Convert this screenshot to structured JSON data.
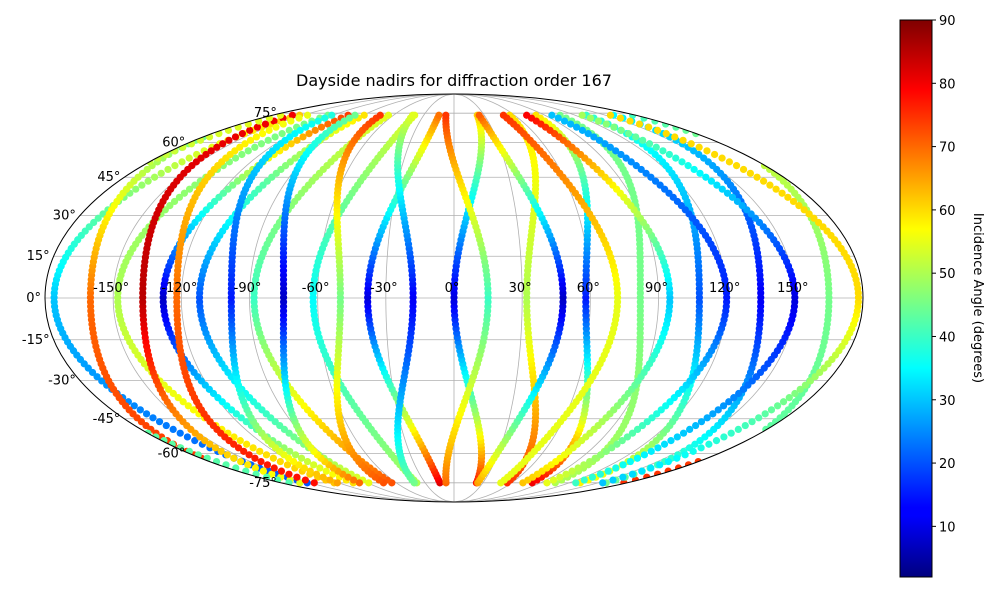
{
  "chart_data": {
    "type": "scatter",
    "projection": "mollweide",
    "title": "Dayside nadirs for diffraction order 167",
    "lon_ticks": [
      "-150°",
      "-120°",
      "-90°",
      "-60°",
      "-30°",
      "0°",
      "30°",
      "60°",
      "90°",
      "120°",
      "150°"
    ],
    "lon_tick_values": [
      -150,
      -120,
      -90,
      -60,
      -30,
      0,
      30,
      60,
      90,
      120,
      150
    ],
    "lat_ticks": [
      "75°",
      "60°",
      "45°",
      "30°",
      "15°",
      "0°",
      "-15°",
      "-30°",
      "-45°",
      "-60°",
      "-75°"
    ],
    "lat_tick_values": [
      75,
      60,
      45,
      30,
      15,
      0,
      -15,
      -30,
      -45,
      -60,
      -75
    ],
    "lat_range": [
      -75,
      75
    ],
    "grid": true,
    "colorbar": {
      "label": "Incidence Angle (degrees)",
      "ticks": [
        "10",
        "20",
        "30",
        "40",
        "50",
        "60",
        "70",
        "80",
        "90"
      ],
      "tick_values": [
        10,
        20,
        30,
        40,
        50,
        60,
        70,
        80,
        90
      ],
      "range": [
        2,
        90
      ],
      "colormap": "jet"
    },
    "tracks": [
      {
        "lon0": -176,
        "slope": 1.0,
        "inc_north": 62,
        "inc_eq": 30,
        "inc_south": 20
      },
      {
        "lon0": -160,
        "slope": -1.0,
        "inc_north": 40,
        "inc_eq": 70,
        "inc_south": 75
      },
      {
        "lon0": -148,
        "slope": 1.0,
        "inc_north": 45,
        "inc_eq": 50,
        "inc_south": 62
      },
      {
        "lon0": -137,
        "slope": -1.0,
        "inc_north": 80,
        "inc_eq": 85,
        "inc_south": 55
      },
      {
        "lon0": -128,
        "slope": 1.0,
        "inc_north": 75,
        "inc_eq": 8,
        "inc_south": 60
      },
      {
        "lon0": -122,
        "slope": -1.0,
        "inc_north": 55,
        "inc_eq": 70,
        "inc_south": 78
      },
      {
        "lon0": -112,
        "slope": 1.0,
        "inc_north": 60,
        "inc_eq": 20,
        "inc_south": 55
      },
      {
        "lon0": -98,
        "slope": -1.0,
        "inc_north": 38,
        "inc_eq": 15,
        "inc_south": 65
      },
      {
        "lon0": -88,
        "slope": 1.0,
        "inc_north": 55,
        "inc_eq": 40,
        "inc_south": 72
      },
      {
        "lon0": -75,
        "slope": -1.0,
        "inc_north": 45,
        "inc_eq": 8,
        "inc_south": 70
      },
      {
        "lon0": -62,
        "slope": 1.0,
        "inc_north": 55,
        "inc_eq": 35,
        "inc_south": 50
      },
      {
        "lon0": -50,
        "slope": -1.0,
        "inc_north": 75,
        "inc_eq": 45,
        "inc_south": 72
      },
      {
        "lon0": -38,
        "slope": 1.0,
        "inc_north": 70,
        "inc_eq": 10,
        "inc_south": 82
      },
      {
        "lon0": -18,
        "slope": -1.0,
        "inc_north": 55,
        "inc_eq": 12,
        "inc_south": 45
      },
      {
        "lon0": 0,
        "slope": 1.0,
        "inc_north": 62,
        "inc_eq": 10,
        "inc_south": 78
      },
      {
        "lon0": 15,
        "slope": -1.0,
        "inc_north": 75,
        "inc_eq": 40,
        "inc_south": 70
      },
      {
        "lon0": 32,
        "slope": 1.0,
        "inc_north": 60,
        "inc_eq": 50,
        "inc_south": 75
      },
      {
        "lon0": 48,
        "slope": -1.0,
        "inc_north": 72,
        "inc_eq": 8,
        "inc_south": 65
      },
      {
        "lon0": 58,
        "slope": 1.0,
        "inc_north": 60,
        "inc_eq": 15,
        "inc_south": 80
      },
      {
        "lon0": 72,
        "slope": -1.0,
        "inc_north": 75,
        "inc_eq": 55,
        "inc_south": 55
      },
      {
        "lon0": 82,
        "slope": 1.0,
        "inc_north": 45,
        "inc_eq": 45,
        "inc_south": 50
      },
      {
        "lon0": 95,
        "slope": -1.0,
        "inc_north": 80,
        "inc_eq": 30,
        "inc_south": 62
      },
      {
        "lon0": 108,
        "slope": 1.0,
        "inc_north": 40,
        "inc_eq": 20,
        "inc_south": 58
      },
      {
        "lon0": 120,
        "slope": -1.0,
        "inc_north": 30,
        "inc_eq": 15,
        "inc_south": 55
      },
      {
        "lon0": 135,
        "slope": 1.0,
        "inc_north": 35,
        "inc_eq": 12,
        "inc_south": 45
      },
      {
        "lon0": 150,
        "slope": -1.0,
        "inc_north": 50,
        "inc_eq": 10,
        "inc_south": 40
      },
      {
        "lon0": 165,
        "slope": 1.0,
        "inc_north": 55,
        "inc_eq": 45,
        "inc_south": 42
      },
      {
        "lon0": 178,
        "slope": -1.0,
        "inc_north": 60,
        "inc_eq": 60,
        "inc_south": 30
      }
    ]
  }
}
